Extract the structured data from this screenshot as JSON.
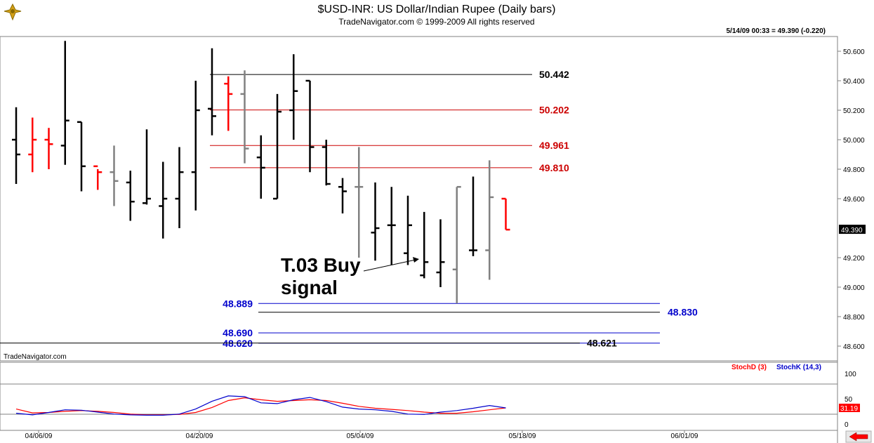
{
  "header": {
    "title": "$USD-INR:  US Dollar/Indian Rupee  (Daily bars)",
    "subtitle": "TradeNavigator.com © 1999-2009 All rights reserved",
    "quote": "5/14/09 00:33 = 49.390 (-0.220)",
    "watermark": "TradeNavigator.com",
    "logo": "trade-navigator-logo"
  },
  "colors": {
    "up_bar": "#000000",
    "down_bar_red": "#ff0000",
    "gray_bar": "#808080",
    "resistance_black": "#000000",
    "resistance_red": "#cc0000",
    "support_blue": "#0000cc",
    "stochD": "#ff0000",
    "stochK": "#0000cc"
  },
  "chart_data": [
    {
      "type": "ohlc",
      "title": "$USD-INR:  US Dollar/Indian Rupee  (Daily bars)",
      "ylim": [
        48.5,
        50.7
      ],
      "y_ticks": [
        "50.600",
        "50.400",
        "50.200",
        "50.000",
        "49.800",
        "49.600",
        "49.390",
        "49.200",
        "49.000",
        "48.800",
        "48.600"
      ],
      "x_ticks": [
        "04/06/09",
        "04/20/09",
        "05/04/09",
        "05/18/09",
        "06/01/09"
      ],
      "last_price_label": "49.390",
      "bars": [
        {
          "date": "03/31/09",
          "o": 50.0,
          "h": 50.22,
          "l": 49.7,
          "c": 49.9,
          "color": "black"
        },
        {
          "date": "04/01/09",
          "o": 49.9,
          "h": 50.15,
          "l": 49.78,
          "c": 50.0,
          "color": "red"
        },
        {
          "date": "04/02/09",
          "o": 50.0,
          "h": 50.08,
          "l": 49.8,
          "c": 49.97,
          "color": "red"
        },
        {
          "date": "04/03/09",
          "o": 49.96,
          "h": 50.67,
          "l": 49.83,
          "c": 50.13,
          "color": "black"
        },
        {
          "date": "04/06/09",
          "o": 50.12,
          "h": 50.12,
          "l": 49.65,
          "c": 49.82,
          "color": "black"
        },
        {
          "date": "04/07/09",
          "o": 49.82,
          "h": 49.8,
          "l": 49.66,
          "c": 49.78,
          "color": "red"
        },
        {
          "date": "04/08/09",
          "o": 49.78,
          "h": 49.96,
          "l": 49.55,
          "c": 49.72,
          "color": "gray"
        },
        {
          "date": "04/09/09",
          "o": 49.71,
          "h": 49.79,
          "l": 49.45,
          "c": 49.58,
          "color": "black"
        },
        {
          "date": "04/10/09",
          "o": 49.57,
          "h": 50.07,
          "l": 49.56,
          "c": 49.6,
          "color": "black"
        },
        {
          "date": "04/13/09",
          "o": 49.55,
          "h": 49.85,
          "l": 49.33,
          "c": 49.6,
          "color": "black"
        },
        {
          "date": "04/14/09",
          "o": 49.6,
          "h": 49.95,
          "l": 49.4,
          "c": 49.78,
          "color": "black"
        },
        {
          "date": "04/15/09",
          "o": 49.78,
          "h": 50.4,
          "l": 49.52,
          "c": 50.2,
          "color": "black"
        },
        {
          "date": "04/16/09",
          "o": 50.21,
          "h": 50.62,
          "l": 50.03,
          "c": 50.16,
          "color": "black"
        },
        {
          "date": "04/17/09",
          "o": 50.38,
          "h": 50.43,
          "l": 50.06,
          "c": 50.31,
          "color": "red"
        },
        {
          "date": "04/20/09",
          "o": 50.31,
          "h": 50.47,
          "l": 49.84,
          "c": 49.94,
          "color": "gray"
        },
        {
          "date": "04/21/09",
          "o": 49.88,
          "h": 50.03,
          "l": 49.6,
          "c": 49.81,
          "color": "black"
        },
        {
          "date": "04/22/09",
          "o": 49.6,
          "h": 50.31,
          "l": 49.6,
          "c": 50.19,
          "color": "black"
        },
        {
          "date": "04/23/09",
          "o": 50.2,
          "h": 50.58,
          "l": 50.0,
          "c": 50.33,
          "color": "black"
        },
        {
          "date": "04/24/09",
          "o": 50.4,
          "h": 50.4,
          "l": 49.78,
          "c": 49.95,
          "color": "black"
        },
        {
          "date": "04/27/09",
          "o": 49.95,
          "h": 50.0,
          "l": 49.69,
          "c": 49.7,
          "color": "black"
        },
        {
          "date": "04/28/09",
          "o": 49.68,
          "h": 49.74,
          "l": 49.5,
          "c": 49.65,
          "color": "black"
        },
        {
          "date": "04/29/09",
          "o": 49.68,
          "h": 49.95,
          "l": 49.2,
          "c": 49.68,
          "color": "gray"
        },
        {
          "date": "04/30/09",
          "o": 49.37,
          "h": 49.71,
          "l": 49.18,
          "c": 49.4,
          "color": "black"
        },
        {
          "date": "05/01/09",
          "o": 49.42,
          "h": 49.68,
          "l": 49.15,
          "c": 49.42,
          "color": "black"
        },
        {
          "date": "05/04/09",
          "o": 49.23,
          "h": 49.62,
          "l": 49.15,
          "c": 49.42,
          "color": "black"
        },
        {
          "date": "05/05/09",
          "o": 49.08,
          "h": 49.51,
          "l": 49.06,
          "c": 49.17,
          "color": "black"
        },
        {
          "date": "05/06/09",
          "o": 49.1,
          "h": 49.46,
          "l": 49.0,
          "c": 49.17,
          "color": "black"
        },
        {
          "date": "05/07/09",
          "o": 49.12,
          "h": 49.68,
          "l": 48.89,
          "c": 49.68,
          "color": "gray"
        },
        {
          "date": "05/08/09",
          "o": 49.25,
          "h": 49.75,
          "l": 49.21,
          "c": 49.25,
          "color": "black"
        },
        {
          "date": "05/11/09",
          "o": 49.25,
          "h": 49.86,
          "l": 49.05,
          "c": 49.61,
          "color": "gray"
        },
        {
          "date": "05/12/09",
          "o": 49.6,
          "h": 49.6,
          "l": 49.39,
          "c": 49.39,
          "color": "red"
        }
      ],
      "levels": [
        {
          "label": "50.442",
          "value": 50.442,
          "color": "black"
        },
        {
          "label": "50.202",
          "value": 50.202,
          "color": "red"
        },
        {
          "label": "49.961",
          "value": 49.961,
          "color": "red"
        },
        {
          "label": "49.810",
          "value": 49.81,
          "color": "red"
        },
        {
          "label": "48.889",
          "value": 48.889,
          "color": "blue"
        },
        {
          "label": "48.830",
          "value": 48.83,
          "color": "black"
        },
        {
          "label": "48.690",
          "value": 48.69,
          "color": "blue"
        },
        {
          "label": "48.620",
          "value": 48.62,
          "color": "blue"
        },
        {
          "label": "48.621",
          "value": 48.621,
          "color": "black"
        }
      ],
      "annotation": {
        "line1": "T.03 Buy",
        "line2": "signal"
      }
    },
    {
      "type": "line",
      "legend": [
        "StochD (3)",
        "StochK (14,3)"
      ],
      "ylim": [
        0,
        100
      ],
      "y_ticks": [
        "100",
        "50",
        "0"
      ],
      "last_value_label": "31.19",
      "series": [
        {
          "name": "StochD (3)",
          "values": [
            28,
            18,
            19,
            22,
            24,
            22,
            19,
            15,
            13,
            13,
            14,
            19,
            32,
            50,
            57,
            52,
            48,
            50,
            52,
            50,
            43,
            35,
            30,
            27,
            24,
            20,
            17,
            17,
            21,
            26,
            31
          ]
        },
        {
          "name": "StochK (14,3)",
          "values": [
            17,
            13,
            19,
            26,
            25,
            20,
            15,
            13,
            12,
            12,
            15,
            28,
            48,
            62,
            60,
            44,
            42,
            52,
            58,
            47,
            33,
            28,
            26,
            22,
            15,
            14,
            20,
            24,
            30,
            37,
            31
          ]
        }
      ]
    }
  ]
}
